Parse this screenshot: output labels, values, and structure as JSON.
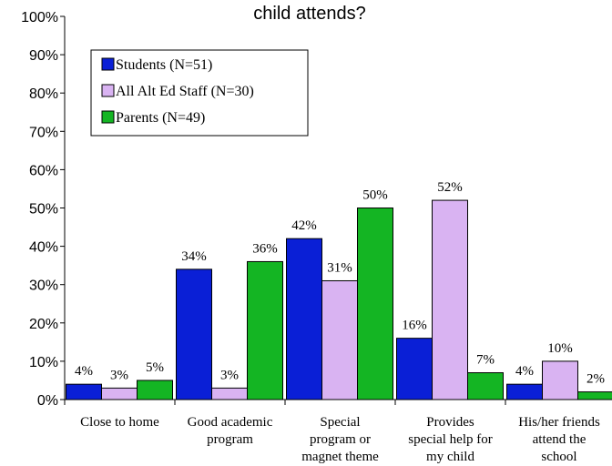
{
  "chart_data": {
    "type": "bar",
    "title": "child attends?",
    "ylim": [
      0,
      100
    ],
    "y_ticks": [
      "0%",
      "10%",
      "20%",
      "30%",
      "40%",
      "50%",
      "60%",
      "70%",
      "80%",
      "90%",
      "100%"
    ],
    "categories": [
      [
        "Close to home"
      ],
      [
        "Good academic",
        "program"
      ],
      [
        "Special",
        "program or",
        "magnet theme"
      ],
      [
        "Provides",
        "special help for",
        "my child"
      ],
      [
        "His/her friends",
        "attend the",
        "school"
      ]
    ],
    "series": [
      {
        "name": "Students (N=51)",
        "color": "#0a1fd6",
        "values": [
          4,
          34,
          42,
          16,
          4
        ],
        "labels": [
          "4%",
          "34%",
          "42%",
          "16%",
          "4%"
        ]
      },
      {
        "name": "All Alt Ed Staff (N=30)",
        "color": "#d9b3f2",
        "values": [
          3,
          3,
          31,
          52,
          10
        ],
        "labels": [
          "3%",
          "3%",
          "31%",
          "52%",
          "10%"
        ]
      },
      {
        "name": "Parents (N=49)",
        "color": "#14b523",
        "values": [
          5,
          36,
          50,
          7,
          2
        ],
        "labels": [
          "5%",
          "36%",
          "50%",
          "7%",
          "2%"
        ]
      }
    ],
    "legend_position": "top-left",
    "grid": false
  }
}
